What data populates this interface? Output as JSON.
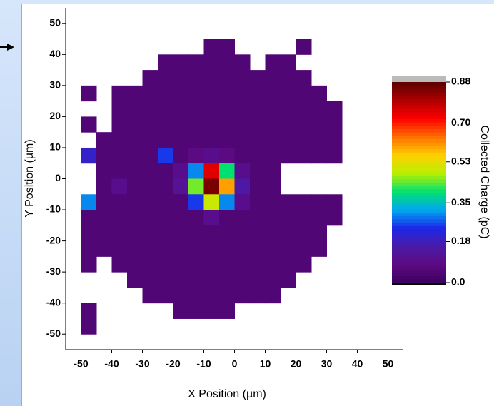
{
  "chart_data": {
    "type": "heatmap",
    "x_label": "X Position (µm)",
    "y_label": "Y Position (µm)",
    "colorbar_label": "Collected Charge (pC)",
    "xbins": [
      -50,
      -45,
      -40,
      -35,
      -30,
      -25,
      -20,
      -15,
      -10,
      -5,
      0,
      5,
      10,
      15,
      20,
      25,
      30,
      35,
      40,
      45,
      50
    ],
    "ybins": [
      50,
      45,
      40,
      35,
      30,
      25,
      20,
      15,
      10,
      5,
      0,
      -5,
      -10,
      -15,
      -20,
      -25,
      -30,
      -35,
      -40,
      -45,
      -50
    ],
    "values": [
      [
        null,
        null,
        null,
        null,
        null,
        null,
        null,
        null,
        null,
        null,
        null,
        null,
        null,
        null,
        null,
        null,
        null,
        null,
        null,
        null
      ],
      [
        null,
        null,
        null,
        null,
        null,
        null,
        null,
        null,
        0.05,
        0.05,
        null,
        null,
        null,
        null,
        0.05,
        null,
        null,
        null,
        null,
        null
      ],
      [
        null,
        null,
        null,
        null,
        null,
        0.05,
        0.05,
        0.05,
        0.05,
        0.05,
        0.05,
        null,
        0.05,
        0.05,
        null,
        null,
        null,
        null,
        null,
        null
      ],
      [
        null,
        null,
        null,
        null,
        0.05,
        0.05,
        0.05,
        0.05,
        0.05,
        0.05,
        0.05,
        0.05,
        0.05,
        0.05,
        0.05,
        null,
        null,
        null,
        null,
        null
      ],
      [
        0.05,
        null,
        0.05,
        0.05,
        0.05,
        0.05,
        0.05,
        0.05,
        0.05,
        0.05,
        0.05,
        0.05,
        0.05,
        0.05,
        0.05,
        0.05,
        null,
        null,
        null,
        null
      ],
      [
        null,
        null,
        0.05,
        0.05,
        0.05,
        0.05,
        0.05,
        0.05,
        0.05,
        0.05,
        0.05,
        0.05,
        0.05,
        0.05,
        0.05,
        0.05,
        0.05,
        null,
        null,
        null
      ],
      [
        0.05,
        null,
        0.05,
        0.05,
        0.05,
        0.05,
        0.05,
        0.05,
        0.05,
        0.05,
        0.05,
        0.05,
        0.05,
        0.05,
        0.05,
        0.05,
        0.05,
        null,
        null,
        null
      ],
      [
        null,
        0.05,
        0.05,
        0.05,
        0.05,
        0.05,
        0.05,
        0.05,
        0.05,
        0.05,
        0.05,
        0.05,
        0.05,
        0.05,
        0.05,
        0.05,
        0.05,
        null,
        null,
        null
      ],
      [
        0.2,
        0.05,
        0.05,
        0.05,
        0.05,
        0.25,
        0.05,
        0.08,
        0.1,
        0.08,
        0.05,
        0.05,
        0.05,
        0.05,
        0.05,
        0.05,
        0.05,
        null,
        null,
        null
      ],
      [
        null,
        0.05,
        0.05,
        0.05,
        0.05,
        0.05,
        0.1,
        0.3,
        0.75,
        0.4,
        0.1,
        0.05,
        0.05,
        null,
        null,
        null,
        null,
        null,
        null,
        null
      ],
      [
        null,
        0.05,
        0.1,
        0.05,
        0.05,
        0.05,
        0.12,
        0.45,
        0.85,
        0.6,
        0.15,
        0.05,
        0.05,
        null,
        null,
        null,
        null,
        null,
        null,
        null
      ],
      [
        0.3,
        0.05,
        0.05,
        0.05,
        0.05,
        0.05,
        0.05,
        0.25,
        0.5,
        0.3,
        0.1,
        0.05,
        0.05,
        0.05,
        0.05,
        0.05,
        0.05,
        null,
        null,
        null
      ],
      [
        0.05,
        0.05,
        0.05,
        0.05,
        0.05,
        0.05,
        0.05,
        0.05,
        0.1,
        0.05,
        0.05,
        0.05,
        0.05,
        0.05,
        0.05,
        0.05,
        0.05,
        null,
        null,
        null
      ],
      [
        0.05,
        0.05,
        0.05,
        0.05,
        0.05,
        0.05,
        0.05,
        0.05,
        0.05,
        0.05,
        0.05,
        0.05,
        0.05,
        0.05,
        0.05,
        0.05,
        null,
        null,
        null,
        null
      ],
      [
        0.05,
        0.05,
        0.05,
        0.05,
        0.05,
        0.05,
        0.05,
        0.05,
        0.05,
        0.05,
        0.05,
        0.05,
        0.05,
        0.05,
        0.05,
        0.05,
        null,
        null,
        null,
        null
      ],
      [
        0.05,
        null,
        0.05,
        0.05,
        0.05,
        0.05,
        0.05,
        0.05,
        0.05,
        0.05,
        0.05,
        0.05,
        0.05,
        0.05,
        0.05,
        null,
        null,
        null,
        null,
        null
      ],
      [
        null,
        null,
        null,
        0.05,
        0.05,
        0.05,
        0.05,
        0.05,
        0.05,
        0.05,
        0.05,
        0.05,
        0.05,
        0.05,
        null,
        null,
        null,
        null,
        null,
        null
      ],
      [
        null,
        null,
        null,
        null,
        0.05,
        0.05,
        0.05,
        0.05,
        0.05,
        0.05,
        0.05,
        0.05,
        0.05,
        null,
        null,
        null,
        null,
        null,
        null,
        null
      ],
      [
        0.05,
        null,
        null,
        null,
        null,
        null,
        0.05,
        0.05,
        0.05,
        0.05,
        null,
        null,
        null,
        null,
        null,
        null,
        null,
        null,
        null,
        null
      ],
      [
        0.05,
        null,
        null,
        null,
        null,
        null,
        null,
        null,
        null,
        null,
        null,
        null,
        null,
        null,
        null,
        null,
        null,
        null,
        null,
        null
      ]
    ],
    "xlim": [
      -55,
      55
    ],
    "ylim": [
      -55,
      55
    ],
    "xticks": [
      -50,
      -40,
      -30,
      -20,
      -10,
      0,
      10,
      20,
      30,
      40,
      50
    ],
    "yticks": [
      -50,
      -40,
      -30,
      -20,
      -10,
      0,
      10,
      20,
      30,
      40,
      50
    ],
    "clim": [
      0,
      0.88
    ],
    "cticks": [
      {
        "value": 0,
        "label": "0.0"
      },
      0.18,
      0.35,
      0.53,
      {
        "value": 0.7,
        "label": "0.70"
      },
      0.88
    ],
    "colormap": [
      "#3d0060",
      "#5c0a82",
      "#4b1aa8",
      "#1c28e8",
      "#00a8f0",
      "#00e070",
      "#b8f000",
      "#ffd000",
      "#ff7000",
      "#ff0000",
      "#b00000",
      "#5a0000"
    ]
  }
}
